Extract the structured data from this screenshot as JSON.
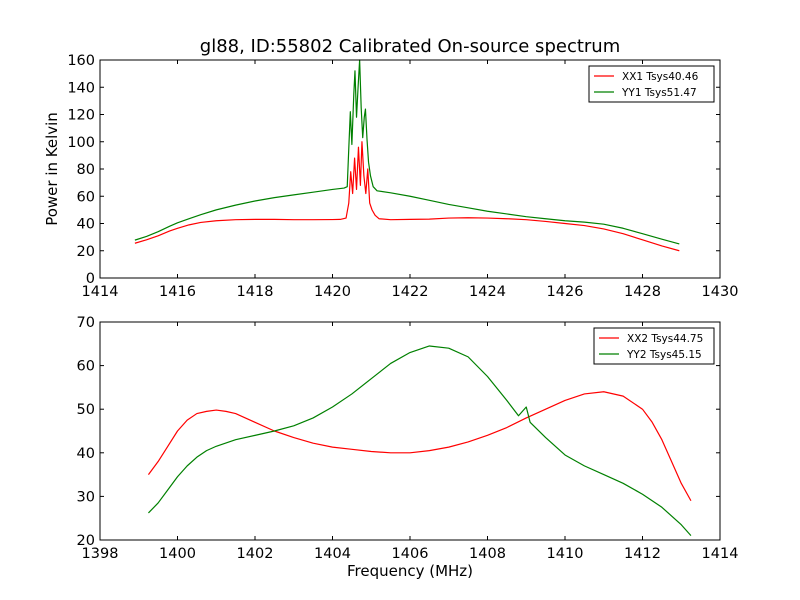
{
  "figure": {
    "title": "gl88, ID:55802 Calibrated On-source spectrum"
  },
  "chart_data": [
    {
      "type": "line",
      "title": "gl88, ID:55802 Calibrated On-source spectrum",
      "xlabel": "",
      "ylabel": "Power in Kelvin",
      "xlim": [
        1414,
        1430
      ],
      "ylim": [
        0,
        160
      ],
      "xticks": [
        1414,
        1416,
        1418,
        1420,
        1422,
        1424,
        1426,
        1428,
        1430
      ],
      "yticks": [
        0,
        20,
        40,
        60,
        80,
        100,
        120,
        140,
        160
      ],
      "grid": false,
      "legend": "top-right",
      "series": [
        {
          "name": "XX1 Tsys40.46",
          "color": "#ff0000",
          "points": [
            [
              1414.9,
              25.5
            ],
            [
              1415.2,
              28.0
            ],
            [
              1415.5,
              31.0
            ],
            [
              1415.8,
              34.5
            ],
            [
              1416.0,
              36.5
            ],
            [
              1416.3,
              39.0
            ],
            [
              1416.6,
              40.8
            ],
            [
              1417.0,
              42.0
            ],
            [
              1417.5,
              42.8
            ],
            [
              1418.0,
              43.0
            ],
            [
              1418.5,
              43.0
            ],
            [
              1419.0,
              42.8
            ],
            [
              1419.5,
              42.8
            ],
            [
              1420.0,
              42.9
            ],
            [
              1420.2,
              43.0
            ],
            [
              1420.35,
              44.0
            ],
            [
              1420.42,
              55.0
            ],
            [
              1420.47,
              78.0
            ],
            [
              1420.52,
              62.0
            ],
            [
              1420.57,
              88.0
            ],
            [
              1420.62,
              65.0
            ],
            [
              1420.67,
              96.0
            ],
            [
              1420.72,
              68.0
            ],
            [
              1420.76,
              100.0
            ],
            [
              1420.81,
              75.0
            ],
            [
              1420.86,
              62.0
            ],
            [
              1420.91,
              80.0
            ],
            [
              1420.96,
              55.0
            ],
            [
              1421.02,
              50.0
            ],
            [
              1421.1,
              46.0
            ],
            [
              1421.2,
              43.5
            ],
            [
              1421.5,
              42.8
            ],
            [
              1422.0,
              43.0
            ],
            [
              1422.5,
              43.2
            ],
            [
              1423.0,
              44.0
            ],
            [
              1423.5,
              44.2
            ],
            [
              1424.0,
              44.0
            ],
            [
              1424.5,
              43.5
            ],
            [
              1425.0,
              42.8
            ],
            [
              1425.5,
              41.5
            ],
            [
              1426.0,
              40.0
            ],
            [
              1426.5,
              38.5
            ],
            [
              1427.0,
              36.0
            ],
            [
              1427.5,
              32.5
            ],
            [
              1428.0,
              28.0
            ],
            [
              1428.5,
              23.5
            ],
            [
              1428.95,
              20.0
            ]
          ]
        },
        {
          "name": "YY1 Tsys51.47",
          "color": "#008000",
          "points": [
            [
              1414.9,
              27.8
            ],
            [
              1415.2,
              30.5
            ],
            [
              1415.5,
              34.0
            ],
            [
              1415.8,
              38.0
            ],
            [
              1416.0,
              40.5
            ],
            [
              1416.3,
              43.5
            ],
            [
              1416.6,
              46.5
            ],
            [
              1417.0,
              50.0
            ],
            [
              1417.5,
              53.5
            ],
            [
              1418.0,
              56.5
            ],
            [
              1418.5,
              59.0
            ],
            [
              1419.0,
              61.0
            ],
            [
              1419.5,
              63.0
            ],
            [
              1420.0,
              65.0
            ],
            [
              1420.3,
              66.0
            ],
            [
              1420.38,
              67.0
            ],
            [
              1420.42,
              95.0
            ],
            [
              1420.46,
              122.0
            ],
            [
              1420.5,
              98.0
            ],
            [
              1420.55,
              135.0
            ],
            [
              1420.58,
              152.0
            ],
            [
              1420.62,
              118.0
            ],
            [
              1420.66,
              140.0
            ],
            [
              1420.7,
              160.0
            ],
            [
              1420.74,
              125.0
            ],
            [
              1420.78,
              103.0
            ],
            [
              1420.82,
              118.0
            ],
            [
              1420.85,
              124.0
            ],
            [
              1420.89,
              102.0
            ],
            [
              1420.93,
              85.0
            ],
            [
              1420.98,
              75.0
            ],
            [
              1421.05,
              67.0
            ],
            [
              1421.15,
              64.0
            ],
            [
              1421.5,
              62.5
            ],
            [
              1422.0,
              60.0
            ],
            [
              1422.5,
              57.0
            ],
            [
              1423.0,
              54.0
            ],
            [
              1423.5,
              51.5
            ],
            [
              1424.0,
              49.0
            ],
            [
              1424.5,
              47.0
            ],
            [
              1425.0,
              45.0
            ],
            [
              1425.5,
              43.5
            ],
            [
              1426.0,
              42.0
            ],
            [
              1426.5,
              41.0
            ],
            [
              1427.0,
              39.5
            ],
            [
              1427.5,
              36.5
            ],
            [
              1428.0,
              32.5
            ],
            [
              1428.5,
              28.5
            ],
            [
              1428.95,
              25.0
            ]
          ]
        }
      ]
    },
    {
      "type": "line",
      "title": "",
      "xlabel": "Frequency (MHz)",
      "ylabel": "",
      "xlim": [
        1398,
        1414
      ],
      "ylim": [
        20,
        70
      ],
      "xticks": [
        1398,
        1400,
        1402,
        1404,
        1406,
        1408,
        1410,
        1412,
        1414
      ],
      "yticks": [
        20,
        30,
        40,
        50,
        60,
        70
      ],
      "grid": false,
      "legend": "top-right",
      "series": [
        {
          "name": "XX2 Tsys44.75",
          "color": "#ff0000",
          "points": [
            [
              1399.25,
              35.0
            ],
            [
              1399.5,
              38.0
            ],
            [
              1399.75,
              41.5
            ],
            [
              1400.0,
              45.0
            ],
            [
              1400.25,
              47.5
            ],
            [
              1400.5,
              49.0
            ],
            [
              1400.75,
              49.5
            ],
            [
              1401.0,
              49.8
            ],
            [
              1401.25,
              49.5
            ],
            [
              1401.5,
              49.0
            ],
            [
              1401.75,
              48.0
            ],
            [
              1402.0,
              47.0
            ],
            [
              1402.5,
              45.0
            ],
            [
              1403.0,
              43.5
            ],
            [
              1403.5,
              42.2
            ],
            [
              1404.0,
              41.3
            ],
            [
              1404.5,
              40.8
            ],
            [
              1405.0,
              40.3
            ],
            [
              1405.5,
              40.0
            ],
            [
              1406.0,
              40.0
            ],
            [
              1406.5,
              40.5
            ],
            [
              1407.0,
              41.3
            ],
            [
              1407.5,
              42.5
            ],
            [
              1408.0,
              44.0
            ],
            [
              1408.5,
              45.8
            ],
            [
              1409.0,
              48.0
            ],
            [
              1409.5,
              50.0
            ],
            [
              1410.0,
              52.0
            ],
            [
              1410.5,
              53.5
            ],
            [
              1411.0,
              54.0
            ],
            [
              1411.5,
              53.0
            ],
            [
              1412.0,
              50.0
            ],
            [
              1412.25,
              47.0
            ],
            [
              1412.5,
              43.0
            ],
            [
              1412.75,
              38.0
            ],
            [
              1413.0,
              33.0
            ],
            [
              1413.25,
              29.0
            ]
          ]
        },
        {
          "name": "YY2 Tsys45.15",
          "color": "#008000",
          "points": [
            [
              1399.25,
              26.2
            ],
            [
              1399.5,
              28.5
            ],
            [
              1399.75,
              31.5
            ],
            [
              1400.0,
              34.5
            ],
            [
              1400.25,
              37.0
            ],
            [
              1400.5,
              39.0
            ],
            [
              1400.75,
              40.5
            ],
            [
              1401.0,
              41.5
            ],
            [
              1401.5,
              43.0
            ],
            [
              1402.0,
              44.0
            ],
            [
              1402.5,
              45.0
            ],
            [
              1403.0,
              46.2
            ],
            [
              1403.5,
              48.0
            ],
            [
              1404.0,
              50.5
            ],
            [
              1404.5,
              53.5
            ],
            [
              1405.0,
              57.0
            ],
            [
              1405.5,
              60.5
            ],
            [
              1406.0,
              63.0
            ],
            [
              1406.5,
              64.5
            ],
            [
              1407.0,
              64.0
            ],
            [
              1407.5,
              62.0
            ],
            [
              1408.0,
              57.5
            ],
            [
              1408.5,
              52.0
            ],
            [
              1408.8,
              48.5
            ],
            [
              1409.0,
              50.5
            ],
            [
              1409.1,
              47.0
            ],
            [
              1409.5,
              43.5
            ],
            [
              1410.0,
              39.5
            ],
            [
              1410.5,
              37.0
            ],
            [
              1411.0,
              35.0
            ],
            [
              1411.5,
              33.0
            ],
            [
              1412.0,
              30.5
            ],
            [
              1412.5,
              27.5
            ],
            [
              1413.0,
              23.5
            ],
            [
              1413.25,
              21.0
            ]
          ]
        }
      ]
    }
  ]
}
